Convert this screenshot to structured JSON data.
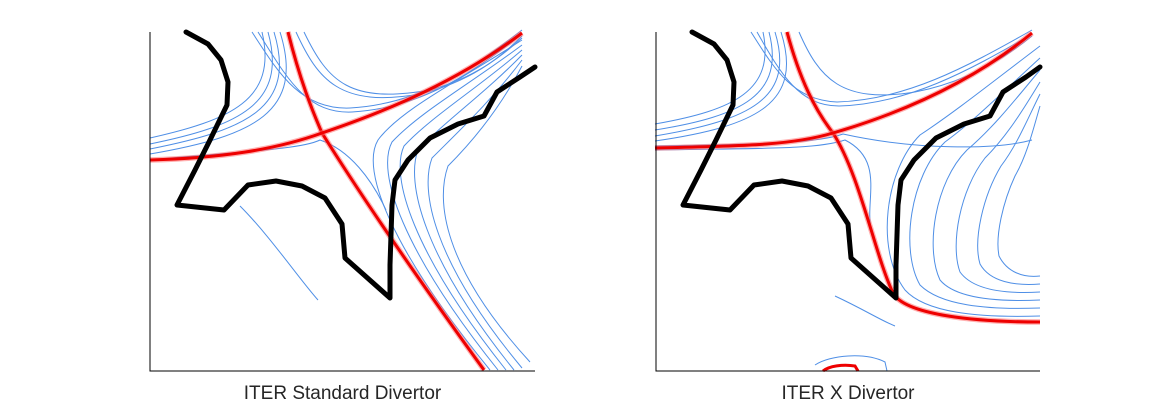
{
  "panels": [
    {
      "caption": "ITER Standard Divertor"
    },
    {
      "caption": "ITER X Divertor"
    }
  ],
  "colors": {
    "flux_surfaces": "#4f8fe6",
    "separatrix": "#ee0000",
    "first_wall": "#000000"
  }
}
